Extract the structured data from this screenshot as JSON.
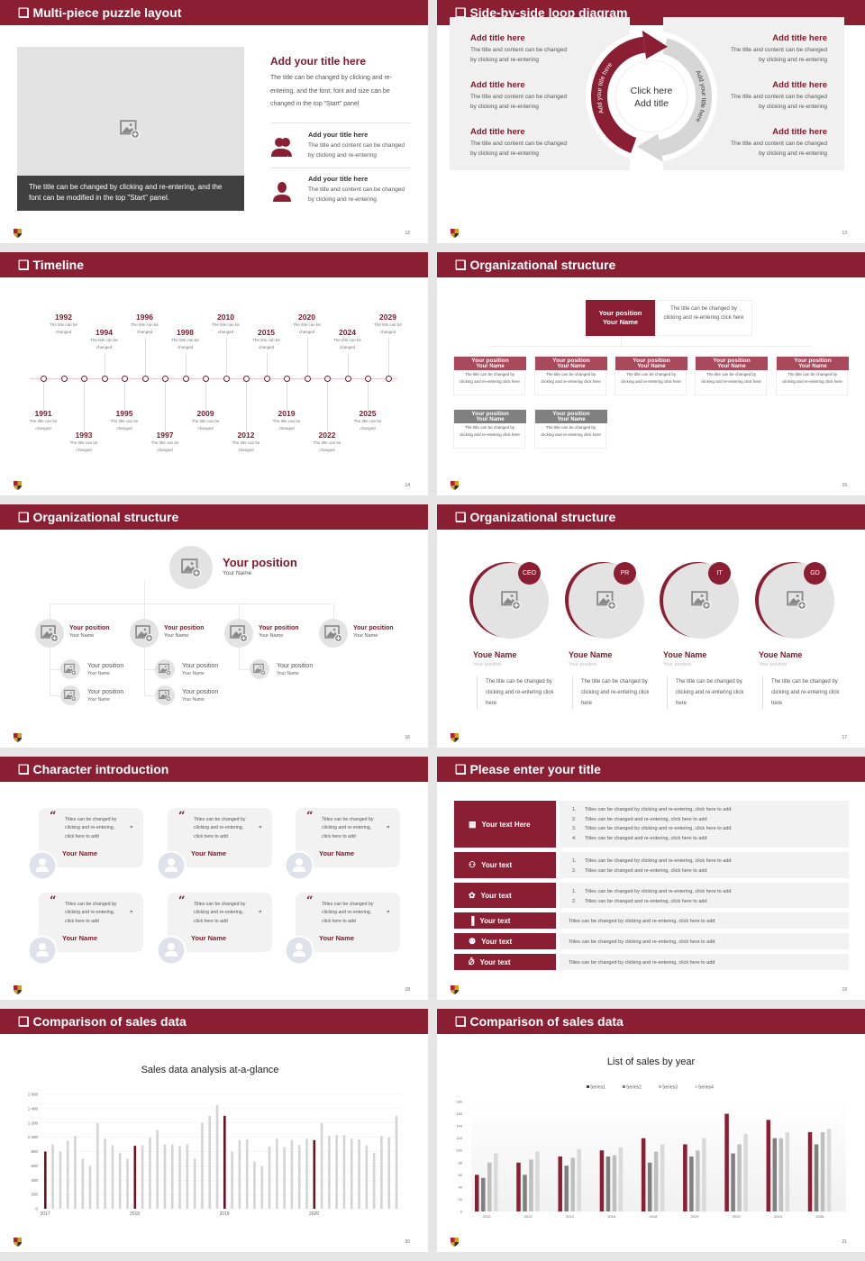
{
  "colors": {
    "brand": "#8a1e33",
    "brand_light": "#a84a5c",
    "gray_header": "#808080",
    "panel": "#f0f0f0",
    "page_bg": "#e6e6e6"
  },
  "slides": [
    {
      "title": "Multi-piece puzzle layout",
      "page": "12",
      "image_caption": "The title can be changed by clicking and re-entering, and the font can be modified in the top \"Start\" panel.",
      "heading": "Add your title here",
      "body": "The title can be changed by clicking and re-entering, and the font, font and size can be changed in the top \"Start\" panel",
      "items": [
        {
          "icon": "group-icon",
          "title": "Add your title here",
          "text": "The title and content can be changed by clicking and re-entering"
        },
        {
          "icon": "person-icon",
          "title": "Add your title here",
          "text": "The title and content can be changed by clicking and re-entering"
        }
      ]
    },
    {
      "title": "Side-by-side loop diagram",
      "page": "13",
      "left": [
        {
          "title": "Add title here",
          "text": "The title and content can be changed by clicking and re-entering"
        },
        {
          "title": "Add title here",
          "text": "The title and content can be changed by clicking and re-entering"
        },
        {
          "title": "Add title here",
          "text": "The title and content can be changed by clicking and re-entering"
        }
      ],
      "right": [
        {
          "title": "Add title here",
          "text": "The title and content can be changed by clicking and re-entering"
        },
        {
          "title": "Add title here",
          "text": "The title and content can be changed by clicking and re-entering"
        },
        {
          "title": "Add title here",
          "text": "The title and content can be changed by clicking and re-entering"
        }
      ],
      "center": [
        "Click here",
        "Add title"
      ],
      "arc_left": "Add your title here",
      "arc_right": "Add your title here"
    },
    {
      "title": "Timeline",
      "page": "14",
      "events": [
        {
          "year": "1991",
          "text": "The title can be changed"
        },
        {
          "year": "1992",
          "text": "The title can be changed"
        },
        {
          "year": "1993",
          "text": "The title can be changed"
        },
        {
          "year": "1994",
          "text": "The title can be changed"
        },
        {
          "year": "1995",
          "text": "The title can be changed"
        },
        {
          "year": "1996",
          "text": "The title can be changed"
        },
        {
          "year": "1997",
          "text": "The title can be changed"
        },
        {
          "year": "1998",
          "text": "The title can be changed"
        },
        {
          "year": "2009",
          "text": "The title can be changed"
        },
        {
          "year": "2010",
          "text": "The title can be changed"
        },
        {
          "year": "2012",
          "text": "The title can be changed"
        },
        {
          "year": "2015",
          "text": "The title can be changed"
        },
        {
          "year": "2019",
          "text": "The title can be changed"
        },
        {
          "year": "2020",
          "text": "The title can be changed"
        },
        {
          "year": "2022",
          "text": "The title can be changed"
        },
        {
          "year": "2024",
          "text": "The title can be changed"
        },
        {
          "year": "2025",
          "text": "The title can be changed"
        },
        {
          "year": "2029",
          "text": "The title can be changed"
        }
      ]
    },
    {
      "title": "Organizational structure",
      "page": "15",
      "top": {
        "position": "Your position",
        "name": "Your Name",
        "text": "The title can be changed by clicking and re-entering click here"
      },
      "members": [
        {
          "position": "Your position",
          "name": "Your Name",
          "text": "The title can be changed by clicking and re-entering click here"
        },
        {
          "position": "Your position",
          "name": "Your Name",
          "text": "The title can be changed by clicking and re-entering click here"
        },
        {
          "position": "Your position",
          "name": "Your Name",
          "text": "The title can be changed by clicking and re-entering click here"
        },
        {
          "position": "Your position",
          "name": "Your Name",
          "text": "The title can be changed by clicking and re-entering click here"
        },
        {
          "position": "Your position",
          "name": "Your Name",
          "text": "The title can be changed by clicking and re-entering click here"
        },
        {
          "position": "Your position",
          "name": "Your Name",
          "text": "The title can be changed by clicking and re-entering click here"
        },
        {
          "position": "Your position",
          "name": "Your Name",
          "text": "The title can be changed by clicking and re-entering click here"
        }
      ]
    },
    {
      "title": "Organizational structure",
      "page": "16",
      "top": {
        "position": "Your position",
        "name": "Your Name"
      },
      "level2": [
        {
          "position": "Your position",
          "name": "Your Name"
        },
        {
          "position": "Your position",
          "name": "Your Name"
        },
        {
          "position": "Your position",
          "name": "Your Name"
        },
        {
          "position": "Your position",
          "name": "Your Name"
        }
      ],
      "level3": [
        [
          {
            "position": "Your position",
            "name": "Your Name"
          },
          {
            "position": "Your position",
            "name": "Your Name"
          }
        ],
        [
          {
            "position": "Your position",
            "name": "Your Name"
          },
          {
            "position": "Your position",
            "name": "Your Name"
          }
        ],
        [
          {
            "position": "Your position",
            "name": "Your Name"
          }
        ],
        []
      ]
    },
    {
      "title": "Organizational structure",
      "page": "17",
      "people": [
        {
          "badge": "CEO",
          "name": "Youe Name",
          "position": "Your position",
          "text": "The title can be changed by clicking and re-entering click here"
        },
        {
          "badge": "PR",
          "name": "Youe Name",
          "position": "Your position",
          "text": "The title can be changed by clicking and re-entering click here"
        },
        {
          "badge": "IT",
          "name": "Youe Name",
          "position": "Your position",
          "text": "The title can be changed by clicking and re-entering click here"
        },
        {
          "badge": "GD",
          "name": "Youe Name",
          "position": "Your position",
          "text": "The title can be changed by clicking and re-entering click here"
        }
      ]
    },
    {
      "title": "Character introduction",
      "page": "18",
      "cards": [
        {
          "quote": "Titles can be changed by clicking and re-entering, click here to add",
          "name": "Your Name"
        },
        {
          "quote": "Titles can be changed by clicking and re-entering, click here to add",
          "name": "Your Name"
        },
        {
          "quote": "Titles can be changed by clicking and re-entering, click here to add",
          "name": "Your Name"
        },
        {
          "quote": "Titles can be changed by clicking and re-entering, click here to add",
          "name": "Your Name"
        },
        {
          "quote": "Titles can be changed by clicking and re-entering, click here to add",
          "name": "Your Name"
        },
        {
          "quote": "Titles can be changed by clicking and re-entering, click here to add",
          "name": "Your Name"
        }
      ]
    },
    {
      "title": "Please enter your title",
      "page": "19",
      "rows": [
        {
          "icon": "presentation-icon",
          "label": "Your text Here",
          "numbered": true,
          "lines": [
            "Titles can be changed by clicking and re-entering, click here to add",
            "Titles can be changed and re-entering, click here to add",
            "Titles can be changed by clicking and re-entering, click here to add",
            "Titles can be changed and re-entering, click here to add"
          ]
        },
        {
          "icon": "team-icon",
          "label": "Your text",
          "numbered": true,
          "lines": [
            "Titles can be changed by clicking and re-entering, click here to add",
            "Titles can be changed and re-entering, click here to add"
          ]
        },
        {
          "icon": "cycle-icon",
          "label": "Your text",
          "numbered": true,
          "lines": [
            "Titles can be changed by clicking and re-entering, click here to add",
            "Titles can be changed and re-entering, click here to add"
          ]
        },
        {
          "icon": "bar-chart-icon",
          "label": "Your text",
          "numbered": false,
          "lines": [
            "Titles can be changed by clicking and re-entering, click here to add"
          ]
        },
        {
          "icon": "group-icon",
          "label": "Your text",
          "numbered": false,
          "lines": [
            "Titles can be changed by clicking and re-entering, click here to add"
          ]
        },
        {
          "icon": "money-hand-icon",
          "label": "Your text",
          "numbered": false,
          "lines": [
            "Titles can be changed by clicking and re-entering, click here to add"
          ]
        }
      ]
    },
    {
      "title": "Comparison of sales data",
      "page": "20"
    },
    {
      "title": "Comparison of sales data",
      "page": "21"
    }
  ],
  "chart_data": [
    {
      "type": "bar",
      "title": "Sales data analysis at-a-glance",
      "xlabel": "",
      "ylabel": "",
      "ylim": [
        0,
        1600
      ],
      "yticks": [
        "0",
        "200",
        "400",
        "600",
        "800",
        "1 000",
        "1 200",
        "1 400",
        "1 600"
      ],
      "xtick_labels": [
        {
          "index": 0,
          "label": "2017"
        },
        {
          "index": 12,
          "label": "2018"
        },
        {
          "index": 24,
          "label": "2019"
        },
        {
          "index": 36,
          "label": "2020"
        }
      ],
      "highlight_indices": [
        0,
        12,
        24,
        36
      ],
      "highlight_color": "#6e1020",
      "bar_color": "#d4d4d4",
      "grid": true,
      "values": [
        800,
        900,
        800,
        950,
        1020,
        700,
        600,
        1200,
        980,
        890,
        780,
        700,
        880,
        890,
        1000,
        1100,
        900,
        900,
        880,
        900,
        700,
        1200,
        1300,
        1450,
        1300,
        800,
        960,
        970,
        660,
        590,
        870,
        980,
        860,
        960,
        890,
        980,
        960,
        1200,
        1020,
        1030,
        1030,
        980,
        970,
        890,
        780,
        1020,
        1000,
        1300
      ]
    },
    {
      "type": "bar",
      "title": "List of sales by year",
      "xlabel": "",
      "ylabel": "",
      "ylim": [
        0,
        180
      ],
      "legend": "top",
      "grid": true,
      "yticks": [
        "0",
        "20",
        "40",
        "60",
        "80",
        "100",
        "120",
        "140",
        "160",
        "180"
      ],
      "categories": [
        "2010",
        "2012",
        "2014",
        "2016",
        "2018",
        "2020",
        "2022",
        "2024",
        "2026"
      ],
      "series": [
        {
          "name": "Series1",
          "color": "#8a1e33",
          "values": [
            60,
            80,
            90,
            100,
            120,
            110,
            160,
            150,
            130
          ]
        },
        {
          "name": "Series2",
          "color": "#808080",
          "values": [
            55,
            60,
            75,
            90,
            80,
            90,
            95,
            120,
            110
          ]
        },
        {
          "name": "Series3",
          "color": "#bfbfbf",
          "values": [
            80,
            85,
            88,
            92,
            98,
            100,
            110,
            120,
            130
          ]
        },
        {
          "name": "Series4",
          "color": "#dadada",
          "values": [
            95,
            98,
            102,
            105,
            110,
            120,
            127,
            130,
            135
          ]
        }
      ]
    }
  ]
}
